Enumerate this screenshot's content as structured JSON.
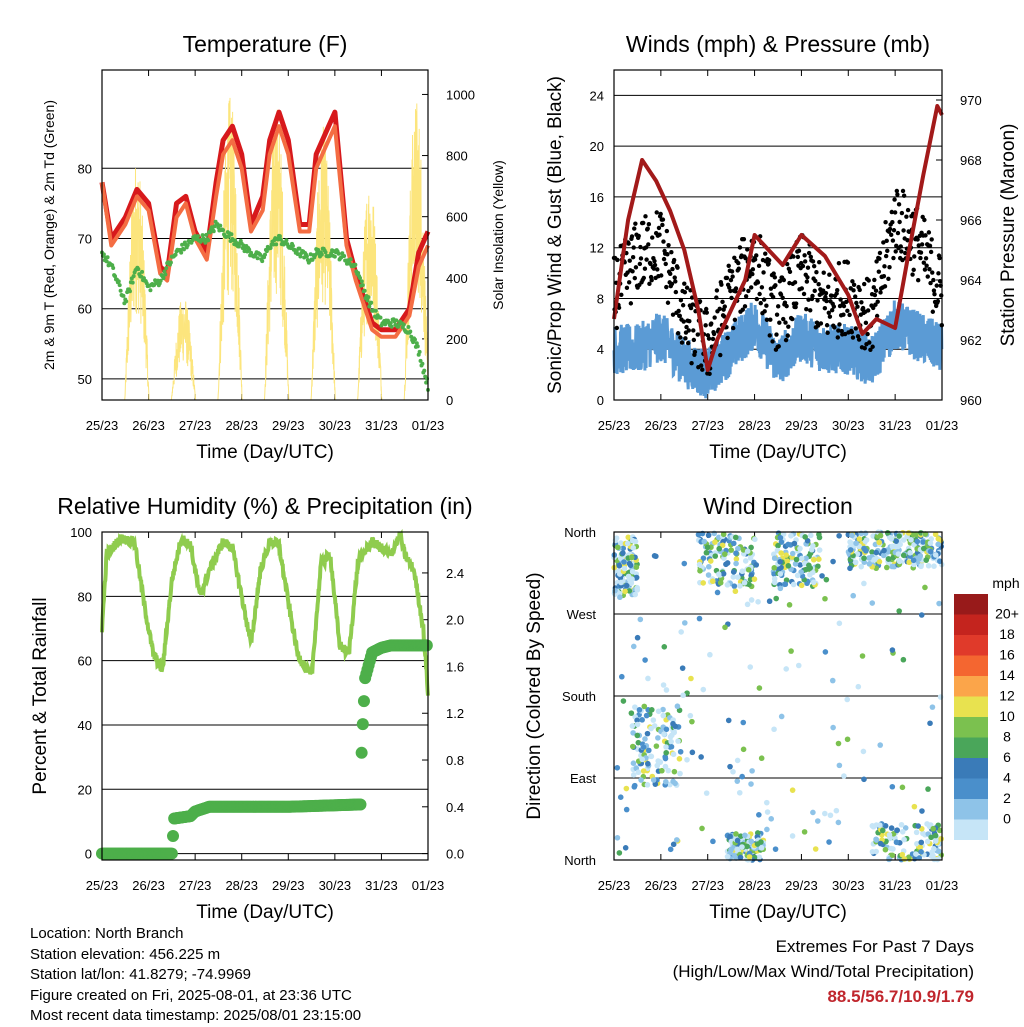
{
  "chart_data": [
    {
      "type": "line",
      "title": "Temperature (F)",
      "xlabel": "Time (Day/UTC)",
      "ylabel": "2m & 9m T (Red, Orange) & 2m Td (Green)",
      "y2label": "Solar Insolation (Yellow)",
      "x_ticks": [
        "25/23",
        "26/23",
        "27/23",
        "28/23",
        "29/23",
        "30/23",
        "31/23",
        "01/23"
      ],
      "ylim": [
        47,
        94
      ],
      "y_ticks": [
        50,
        60,
        70,
        80
      ],
      "y2lim": [
        0,
        1080
      ],
      "y2_ticks": [
        0,
        200,
        400,
        600,
        800,
        1000
      ],
      "grid": "horizontal",
      "series": [
        {
          "color": "#d7191c",
          "x": [
            0,
            0.2,
            0.5,
            0.75,
            1.0,
            1.25,
            1.4,
            1.6,
            1.8,
            2.0,
            2.25,
            2.45,
            2.6,
            2.8,
            3.0,
            3.2,
            3.45,
            3.6,
            3.8,
            4.0,
            4.25,
            4.45,
            4.6,
            4.8,
            5.0,
            5.25,
            5.45,
            5.6,
            5.8,
            6.0,
            6.3,
            6.6,
            6.8,
            7.0
          ],
          "y": [
            78,
            70,
            73,
            77,
            75,
            66,
            65,
            75,
            76,
            71,
            68,
            78,
            84,
            86,
            82,
            72,
            76,
            84,
            88,
            84,
            72,
            72,
            82,
            85,
            88,
            70,
            65,
            62,
            58,
            57,
            57,
            60,
            68,
            71
          ]
        },
        {
          "color": "#f46d43",
          "x": [
            0,
            0.2,
            0.5,
            0.75,
            1.0,
            1.25,
            1.4,
            1.6,
            1.8,
            2.0,
            2.25,
            2.45,
            2.6,
            2.8,
            3.0,
            3.2,
            3.45,
            3.6,
            3.8,
            4.0,
            4.25,
            4.45,
            4.6,
            4.8,
            5.0,
            5.25,
            5.45,
            5.6,
            5.8,
            6.0,
            6.3,
            6.6,
            6.8,
            7.0
          ],
          "y": [
            78,
            69,
            72,
            76,
            74,
            65,
            64,
            73,
            75,
            70,
            67,
            76,
            82,
            84,
            80,
            71,
            74,
            82,
            86,
            82,
            71,
            71,
            80,
            83,
            86,
            69,
            64,
            61,
            57,
            56,
            56,
            59,
            66,
            69
          ]
        },
        {
          "color": "#4daf4a",
          "x": [
            0,
            0.2,
            0.5,
            0.75,
            1.0,
            1.25,
            1.4,
            1.6,
            1.8,
            2.0,
            2.25,
            2.45,
            2.6,
            2.8,
            3.0,
            3.2,
            3.45,
            3.6,
            3.8,
            4.0,
            4.25,
            4.45,
            4.6,
            4.8,
            5.0,
            5.25,
            5.45,
            5.6,
            5.8,
            6.0,
            6.3,
            6.6,
            6.8,
            7.0
          ],
          "y": [
            68,
            66,
            61,
            66,
            63,
            64,
            66,
            68,
            69,
            70,
            70,
            72,
            71,
            70,
            69,
            68,
            67,
            69,
            70,
            69,
            68,
            67,
            68,
            68,
            68,
            67,
            66,
            63,
            60,
            58,
            58,
            57,
            54,
            49
          ]
        }
      ],
      "solar": {
        "color": "#fce57d",
        "day_centers": [
          0.75,
          1.75,
          2.75,
          3.75,
          4.75,
          5.75,
          6.75
        ],
        "peaks": [
          800,
          350,
          1000,
          980,
          900,
          750,
          1000
        ]
      }
    },
    {
      "type": "scatter",
      "title": "Winds (mph) & Pressure (mb)",
      "xlabel": "Time (Day/UTC)",
      "ylabel": "Sonic/Prop Wind & Gust (Blue, Black)",
      "y2label": "Station Pressure (Maroon)",
      "x_ticks": [
        "25/23",
        "26/23",
        "27/23",
        "28/23",
        "29/23",
        "30/23",
        "31/23",
        "01/23"
      ],
      "ylim": [
        0,
        26
      ],
      "y_ticks": [
        0,
        4,
        8,
        12,
        16,
        20,
        24
      ],
      "y2lim": [
        960,
        971
      ],
      "y2_ticks": [
        960,
        962,
        964,
        966,
        968,
        970
      ],
      "grid": "horizontal",
      "series": [
        {
          "name": "",
          "color": "#5b9bd5",
          "x": [
            0,
            0.5,
            1.0,
            1.5,
            2.0,
            2.5,
            3.0,
            3.5,
            4.0,
            4.5,
            5.0,
            5.5,
            6.0,
            6.5,
            7.0
          ],
          "y": [
            4,
            4,
            5,
            3,
            2,
            4,
            6,
            3,
            5,
            4,
            4,
            3,
            6,
            5,
            4
          ]
        },
        {
          "name": "",
          "color": "#000000",
          "x": [
            0,
            0.5,
            1.0,
            1.5,
            2.0,
            2.5,
            3.0,
            3.5,
            4.0,
            4.5,
            5.0,
            5.5,
            6.0,
            6.5,
            7.0
          ],
          "y": [
            8,
            11,
            12,
            6,
            4,
            8,
            11,
            6,
            10,
            7,
            8,
            6,
            14,
            12,
            8
          ]
        },
        {
          "name": "",
          "color": "#a21a1a",
          "x": [
            0,
            0.3,
            0.6,
            0.9,
            1.2,
            1.5,
            1.8,
            2.0,
            2.2,
            2.5,
            2.8,
            3.0,
            3.3,
            3.6,
            4.0,
            4.5,
            5.0,
            5.3,
            5.6,
            6.0,
            6.3,
            6.6,
            6.9,
            7.0
          ],
          "y2": [
            962.7,
            966.0,
            968.0,
            967.3,
            966.3,
            965.0,
            963.0,
            961.0,
            962.0,
            963.0,
            964.0,
            965.5,
            965.0,
            964.5,
            965.5,
            964.8,
            963.5,
            962.2,
            962.7,
            962.4,
            965.0,
            967.5,
            969.8,
            969.5
          ]
        }
      ]
    },
    {
      "type": "line",
      "title": "Relative Humidity (%) & Precipitation (in)",
      "xlabel": "Time (Day/UTC)",
      "ylabel": "Percent & Total Rainfall",
      "x_ticks": [
        "25/23",
        "26/23",
        "27/23",
        "28/23",
        "29/23",
        "30/23",
        "31/23",
        "01/23"
      ],
      "ylim": [
        -2,
        100
      ],
      "y_ticks": [
        0,
        20,
        40,
        60,
        80,
        100
      ],
      "y2lim": [
        -0.055,
        2.75
      ],
      "y2_ticks": [
        "0.0",
        "0.4",
        "0.8",
        "1.2",
        "1.6",
        "2.0",
        "2.4"
      ],
      "grid": "horizontal",
      "series": [
        {
          "color": "#8fcc4e",
          "x": [
            0,
            0.1,
            0.4,
            0.7,
            0.9,
            1.1,
            1.3,
            1.5,
            1.7,
            1.9,
            2.1,
            2.3,
            2.6,
            2.8,
            3.0,
            3.2,
            3.4,
            3.6,
            3.8,
            4.0,
            4.2,
            4.5,
            4.7,
            4.9,
            5.1,
            5.3,
            5.5,
            5.8,
            6.0,
            6.2,
            6.4,
            6.5,
            6.7,
            6.9,
            7.0
          ],
          "y": [
            70,
            93,
            98,
            97,
            78,
            62,
            57,
            85,
            98,
            96,
            80,
            88,
            97,
            95,
            80,
            65,
            88,
            97,
            96,
            78,
            62,
            55,
            90,
            93,
            65,
            62,
            91,
            97,
            95,
            93,
            99,
            93,
            88,
            70,
            50
          ]
        },
        {
          "color": "#4daf4a",
          "x": [
            0,
            1.5,
            1.55,
            1.9,
            2.0,
            2.3,
            4.0,
            5.55,
            5.58,
            5.65,
            5.8,
            6.0,
            6.2,
            7.0
          ],
          "y2": [
            0.0,
            0.0,
            0.3,
            0.32,
            0.36,
            0.4,
            0.4,
            0.42,
            0.95,
            1.5,
            1.72,
            1.76,
            1.78,
            1.78
          ]
        }
      ]
    },
    {
      "type": "scatter",
      "title": "Wind Direction",
      "xlabel": "Time (Day/UTC)",
      "ylabel": "Direction (Colored By Speed)",
      "x_ticks": [
        "25/23",
        "26/23",
        "27/23",
        "28/23",
        "29/23",
        "30/23",
        "31/23",
        "01/23"
      ],
      "y_ticks": [
        "North",
        "East",
        "South",
        "West",
        "North"
      ],
      "ylim": [
        0,
        360
      ],
      "grid": "horizontal",
      "colorbar": {
        "title": "mph",
        "labels": [
          "0",
          "2",
          "4",
          "6",
          "8",
          "10",
          "12",
          "14",
          "16",
          "18",
          "20+"
        ],
        "colors": [
          "#c6e5f7",
          "#8ec3e8",
          "#4a8fcb",
          "#3a7bb8",
          "#4aa65a",
          "#7bc14f",
          "#e8e24f",
          "#fba54a",
          "#f46630",
          "#e03a2a",
          "#c4241e",
          "#981a1a"
        ]
      },
      "clusters": [
        {
          "x": [
            0.0,
            0.5
          ],
          "y": [
            290,
            355
          ]
        },
        {
          "x": [
            0.4,
            1.4
          ],
          "y": [
            80,
            170
          ]
        },
        {
          "x": [
            1.8,
            3.0
          ],
          "y": [
            300,
            360
          ]
        },
        {
          "x": [
            3.4,
            4.4
          ],
          "y": [
            300,
            360
          ]
        },
        {
          "x": [
            5.0,
            6.0
          ],
          "y": [
            320,
            360
          ]
        },
        {
          "x": [
            6.0,
            7.0
          ],
          "y": [
            320,
            360
          ]
        },
        {
          "x": [
            5.5,
            7.0
          ],
          "y": [
            0,
            40
          ]
        },
        {
          "x": [
            2.4,
            3.2
          ],
          "y": [
            0,
            30
          ]
        },
        {
          "x": [
            0.0,
            7.0
          ],
          "y": [
            0,
            360
          ]
        }
      ]
    }
  ],
  "footer": {
    "location": "Location: North Branch",
    "elevation": "Station elevation: 456.225 m",
    "latlon": "Station lat/lon: 41.8279; -74.9969",
    "created": "Figure created on Fri, 2025-08-01, at 23:36 UTC",
    "recent": "Most recent data timestamp: 2025/08/01 23:15:00"
  },
  "extremes": {
    "title": "Extremes For Past 7 Days",
    "subtitle": "(High/Low/Max Wind/Total Precipitation)",
    "values": "88.5/56.7/10.9/1.79"
  }
}
